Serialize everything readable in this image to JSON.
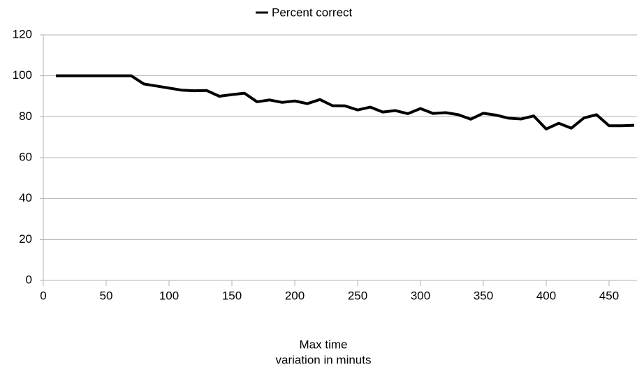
{
  "chart_data": {
    "type": "line",
    "legend": "top",
    "xlabel": [
      "Max time",
      "variation in minuts"
    ],
    "x": [
      10,
      20,
      30,
      40,
      50,
      60,
      70,
      80,
      90,
      100,
      110,
      120,
      130,
      140,
      150,
      160,
      170,
      180,
      190,
      200,
      210,
      220,
      230,
      240,
      250,
      260,
      270,
      280,
      290,
      300,
      310,
      320,
      330,
      340,
      350,
      360,
      370,
      380,
      390,
      400,
      410,
      420,
      430,
      440,
      450,
      460,
      470
    ],
    "series": [
      {
        "name": "Percent correct",
        "color": "#000000",
        "values": [
          100,
          100,
          100,
          100,
          100,
          100,
          100,
          96,
          95,
          94,
          93,
          92.7,
          92.8,
          90,
          90.8,
          91.5,
          87.3,
          88.2,
          87,
          87.7,
          86.4,
          88.4,
          85.4,
          85.3,
          83.3,
          84.7,
          82.3,
          83,
          81.5,
          84,
          81.6,
          82,
          81,
          78.8,
          81.7,
          80.8,
          79.3,
          78.9,
          80.4,
          74,
          76.8,
          74.4,
          79.4,
          81,
          75.6,
          75.6,
          75.8
        ]
      }
    ],
    "xlim": [
      0,
      470
    ],
    "xticks": [
      0,
      50,
      100,
      150,
      200,
      250,
      300,
      350,
      400,
      450
    ],
    "ylim": [
      0,
      120
    ],
    "yticks": [
      0,
      20,
      40,
      60,
      80,
      100,
      120
    ],
    "grid": true
  }
}
